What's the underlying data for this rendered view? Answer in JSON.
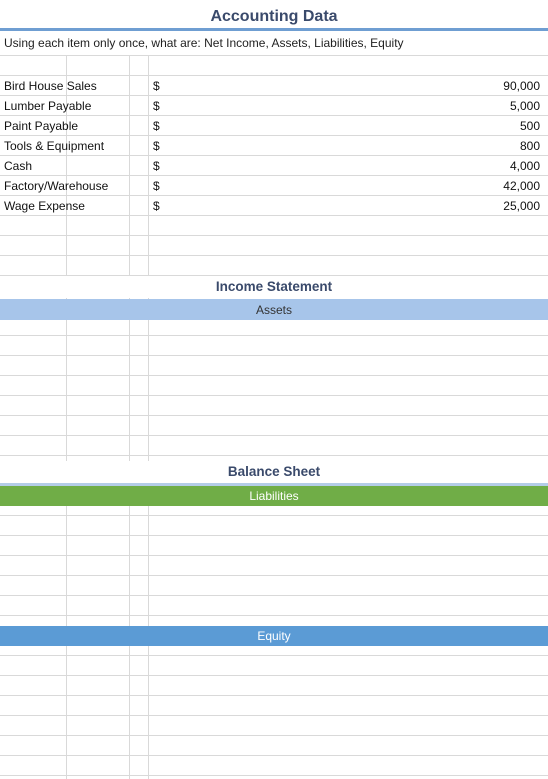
{
  "sheet": {
    "title": "Accounting Data",
    "instructions": "Using each item only once, what are:  Net Income, Assets, Liabilities, Equity",
    "items": [
      {
        "label": "Bird House Sales",
        "currency": "$",
        "amount": "90,000"
      },
      {
        "label": "Lumber Payable",
        "currency": "$",
        "amount": "5,000"
      },
      {
        "label": "Paint Payable",
        "currency": "$",
        "amount": "500"
      },
      {
        "label": "Tools & Equipment",
        "currency": "$",
        "amount": "800"
      },
      {
        "label": "Cash",
        "currency": "$",
        "amount": "4,000"
      },
      {
        "label": "Factory/Warehouse",
        "currency": "$",
        "amount": "42,000"
      },
      {
        "label": "Wage Expense",
        "currency": "$",
        "amount": "25,000"
      }
    ],
    "income_statement_title": "Income Statement",
    "assets_label": "Assets",
    "balance_sheet_title": "Balance Sheet",
    "liabilities_label": "Liabilities",
    "equity_label": "Equity"
  },
  "colors": {
    "title_text": "#3a4a6b",
    "title_rule": "#6f9ed2",
    "assets_band": "#a7c5ea",
    "liabilities_band": "#70ad47",
    "equity_band": "#5b9bd5",
    "gridline": "#d9d9d9"
  }
}
